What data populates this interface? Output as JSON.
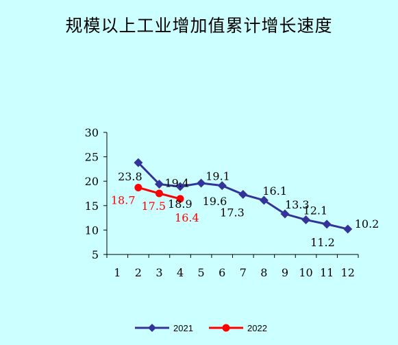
{
  "chart_data": {
    "type": "line",
    "title": "规模以上工业增加值累计增长速度",
    "xlabel": "",
    "ylabel": "",
    "categories": [
      "1",
      "2",
      "3",
      "4",
      "5",
      "6",
      "7",
      "8",
      "9",
      "10",
      "11",
      "12"
    ],
    "ylim": [
      5,
      30
    ],
    "yticks": [
      "5",
      "10",
      "15",
      "20",
      "25",
      "30"
    ],
    "grid": false,
    "legend_position": "bottom",
    "series": [
      {
        "name": "2021",
        "color": "#333399",
        "marker": "diamond",
        "x": [
          "2",
          "3",
          "4",
          "5",
          "6",
          "7",
          "8",
          "9",
          "10",
          "11",
          "12"
        ],
        "values": [
          23.8,
          19.4,
          18.9,
          19.6,
          19.1,
          17.3,
          16.1,
          13.3,
          12.1,
          11.2,
          10.2
        ],
        "labels": [
          "23.8",
          "19.4",
          "18.9",
          "19.6",
          "19.1",
          "17.3",
          "16.1",
          "13.3",
          "12.1",
          "11.2",
          "10.2"
        ],
        "label_color": "#000000"
      },
      {
        "name": "2022",
        "color": "#ff0000",
        "marker": "circle",
        "x": [
          "2",
          "3",
          "4"
        ],
        "values": [
          18.7,
          17.5,
          16.4
        ],
        "labels": [
          "18.7",
          "17.5",
          "16.4"
        ],
        "label_color": "#ff0000"
      }
    ]
  }
}
